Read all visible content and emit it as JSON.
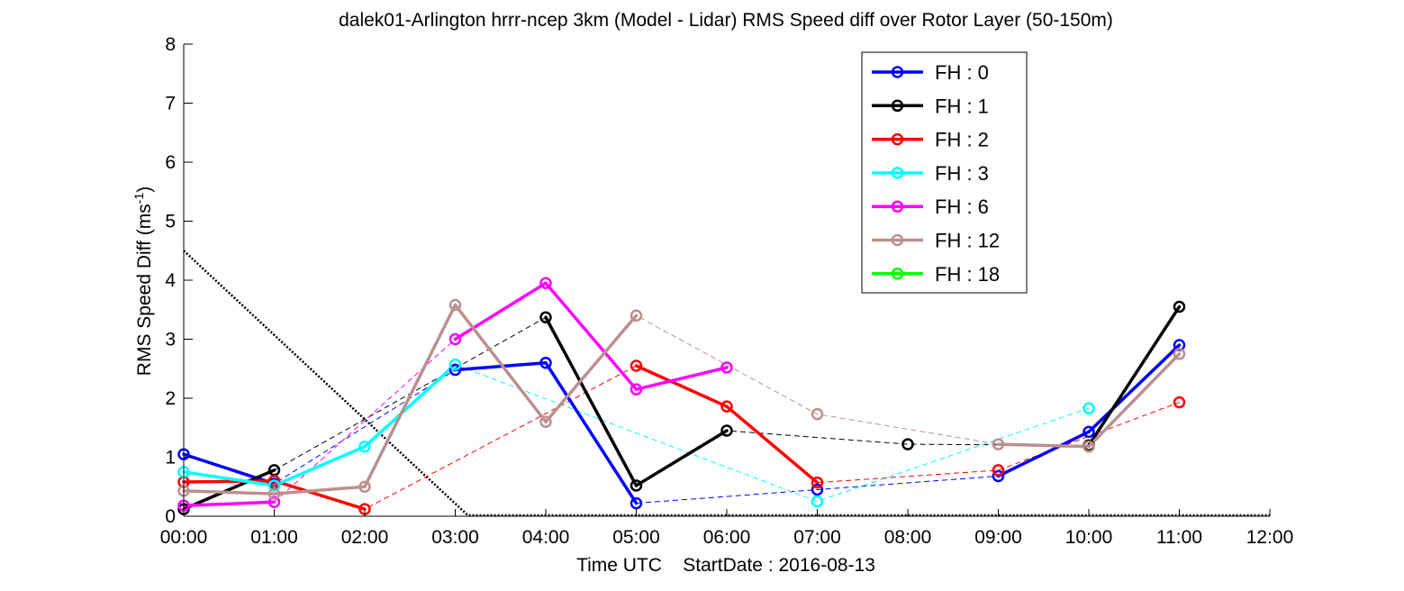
{
  "chart_data": {
    "type": "line",
    "title": "dalek01-Arlington hrrr-ncep 3km (Model - Lidar) RMS Speed diff over Rotor Layer (50-150m)",
    "xlabel": "Time UTC    StartDate : 2016-08-13",
    "ylabel_main": "RMS Speed Diff (ms",
    "ylabel_sup": "-1",
    "ylabel_close": ")",
    "xlim": [
      0,
      12
    ],
    "ylim": [
      0,
      8
    ],
    "x_ticks": [
      {
        "value": 0,
        "label": "00:00"
      },
      {
        "value": 1,
        "label": "01:00"
      },
      {
        "value": 2,
        "label": "02:00"
      },
      {
        "value": 3,
        "label": "03:00"
      },
      {
        "value": 4,
        "label": "04:00"
      },
      {
        "value": 5,
        "label": "05:00"
      },
      {
        "value": 6,
        "label": "06:00"
      },
      {
        "value": 7,
        "label": "07:00"
      },
      {
        "value": 8,
        "label": "08:00"
      },
      {
        "value": 9,
        "label": "09:00"
      },
      {
        "value": 10,
        "label": "10:00"
      },
      {
        "value": 11,
        "label": "11:00"
      },
      {
        "value": 12,
        "label": "12:00"
      }
    ],
    "y_ticks": [
      {
        "value": 0,
        "label": "0"
      },
      {
        "value": 1,
        "label": "1"
      },
      {
        "value": 2,
        "label": "2"
      },
      {
        "value": 3,
        "label": "3"
      },
      {
        "value": 4,
        "label": "4"
      },
      {
        "value": 5,
        "label": "5"
      },
      {
        "value": 6,
        "label": "6"
      },
      {
        "value": 7,
        "label": "7"
      },
      {
        "value": 8,
        "label": "8"
      }
    ],
    "legend_position": "top-right",
    "grid": false,
    "series": [
      {
        "name": "FH : 0",
        "color": "#0000ff",
        "points": [
          [
            0,
            1.05
          ],
          [
            1,
            0.55
          ],
          [
            3,
            2.48
          ],
          [
            4,
            2.6
          ],
          [
            5,
            0.22
          ],
          [
            7,
            0.45
          ],
          [
            9,
            0.68
          ],
          [
            10,
            1.43
          ],
          [
            11,
            2.9
          ]
        ]
      },
      {
        "name": "FH : 1",
        "color": "#000000",
        "points": [
          [
            0,
            0.12
          ],
          [
            1,
            0.78
          ],
          [
            4,
            3.37
          ],
          [
            5,
            0.52
          ],
          [
            6,
            1.45
          ],
          [
            8,
            1.22
          ],
          [
            10,
            1.2
          ],
          [
            11,
            3.55
          ]
        ]
      },
      {
        "name": "FH : 2",
        "color": "#ff0000",
        "points": [
          [
            0,
            0.58
          ],
          [
            1,
            0.6
          ],
          [
            2,
            0.12
          ],
          [
            5,
            2.55
          ],
          [
            6,
            1.86
          ],
          [
            7,
            0.57
          ],
          [
            9,
            0.78
          ],
          [
            11,
            1.93
          ]
        ]
      },
      {
        "name": "FH : 3",
        "color": "#00ffff",
        "points": [
          [
            0,
            0.75
          ],
          [
            1,
            0.52
          ],
          [
            2,
            1.18
          ],
          [
            3,
            2.57
          ],
          [
            7,
            0.25
          ],
          [
            10,
            1.83
          ]
        ]
      },
      {
        "name": "FH : 6",
        "color": "#ff00ff",
        "points": [
          [
            0,
            0.18
          ],
          [
            1,
            0.24
          ],
          [
            3,
            3.0
          ],
          [
            4,
            3.95
          ],
          [
            5,
            2.15
          ],
          [
            6,
            2.52
          ]
        ]
      },
      {
        "name": "FH : 12",
        "color": "#bc8f8f",
        "points": [
          [
            0,
            0.43
          ],
          [
            1,
            0.38
          ],
          [
            2,
            0.5
          ],
          [
            3,
            3.58
          ],
          [
            4,
            1.6
          ],
          [
            5,
            3.4
          ],
          [
            7,
            1.73
          ],
          [
            9,
            1.22
          ],
          [
            10,
            1.18
          ],
          [
            11,
            2.75
          ]
        ]
      },
      {
        "name": "FH : 18",
        "color": "#00ff00",
        "points": []
      }
    ],
    "reference_line": {
      "style": "dotted",
      "color": "#000000",
      "x": [
        0,
        3.15
      ],
      "y": [
        4.5,
        0
      ]
    }
  }
}
